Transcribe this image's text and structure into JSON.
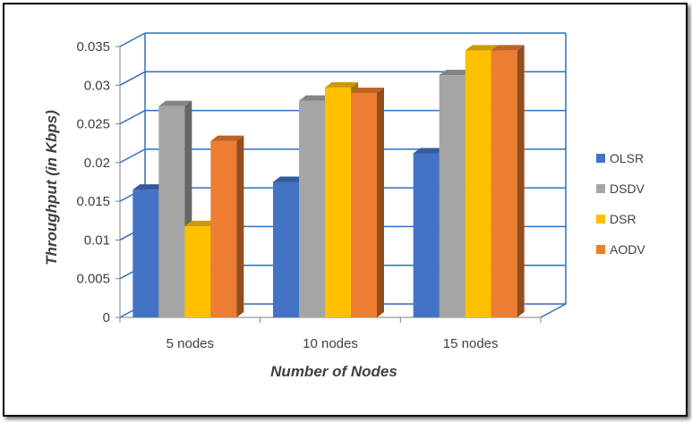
{
  "colors": {
    "grid": "#2f6fc0",
    "axis": "#7f7f7f",
    "text": "#404040"
  },
  "chart_data": {
    "type": "bar",
    "categories": [
      "5 nodes",
      "10 nodes",
      "15 nodes"
    ],
    "series": [
      {
        "name": "OLSR",
        "values": [
          0.0165,
          0.0175,
          0.0212
        ],
        "color": "#4472c4"
      },
      {
        "name": "DSDV",
        "values": [
          0.0273,
          0.028,
          0.0313
        ],
        "color": "#a5a5a5"
      },
      {
        "name": "DSR",
        "values": [
          0.0118,
          0.0297,
          0.0345
        ],
        "color": "#ffc000"
      },
      {
        "name": "AODV",
        "values": [
          0.0228,
          0.029,
          0.0345
        ],
        "color": "#ed7d31"
      }
    ],
    "title": "",
    "xlabel": "Number of Nodes",
    "ylabel": "Throughput (in Kbps)",
    "ylim": [
      0,
      0.035
    ],
    "yticks": [
      "0",
      "0.005",
      "0.01",
      "0.015",
      "0.02",
      "0.025",
      "0.03",
      "0.035"
    ],
    "grid": true,
    "legend_position": "right",
    "style": "3d-clustered"
  }
}
